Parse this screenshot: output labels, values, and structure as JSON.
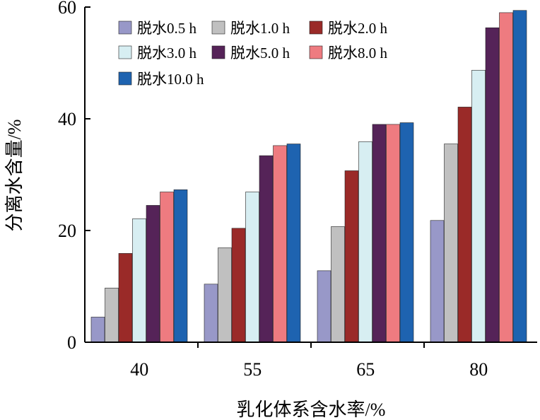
{
  "chart_data": {
    "type": "bar",
    "title": "",
    "xlabel": "乳化体系含水率/%",
    "ylabel": "分离水含量/%",
    "ylim": [
      0,
      60
    ],
    "yticks": [
      "0",
      "20",
      "40",
      "60"
    ],
    "categories": [
      "40",
      "55",
      "65",
      "80"
    ],
    "legend_position": "top-left",
    "series": [
      {
        "name": "脱水0.5 h",
        "color": "#9898c8",
        "values": [
          4.5,
          10.4,
          12.8,
          21.8
        ]
      },
      {
        "name": "脱水1.0 h",
        "color": "#c0c0c0",
        "values": [
          9.7,
          16.9,
          20.7,
          35.5
        ]
      },
      {
        "name": "脱水2.0 h",
        "color": "#9a2a28",
        "values": [
          15.9,
          20.4,
          30.7,
          42.1
        ]
      },
      {
        "name": "脱水3.0 h",
        "color": "#d7eef2",
        "values": [
          22.1,
          26.9,
          35.9,
          48.7
        ]
      },
      {
        "name": "脱水5.0 h",
        "color": "#552358",
        "values": [
          24.5,
          33.4,
          39.0,
          56.3
        ]
      },
      {
        "name": "脱水8.0 h",
        "color": "#ee7b80",
        "values": [
          26.9,
          35.2,
          39.0,
          59.0
        ]
      },
      {
        "name": "脱水10.0 h",
        "color": "#1e63b0",
        "values": [
          27.3,
          35.5,
          39.3,
          59.4
        ]
      }
    ]
  }
}
